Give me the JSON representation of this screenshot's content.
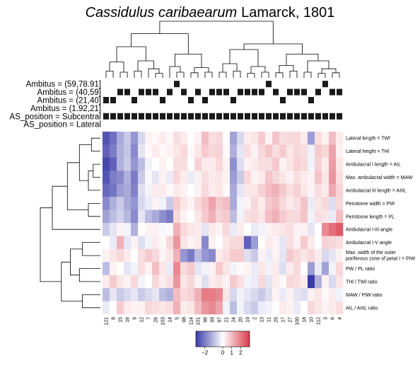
{
  "chart_data": {
    "type": "heatmap",
    "title_species": "Cassidulus caribaearum",
    "title_author": "Lamarck, 1801",
    "colors": {
      "low": "#3a3aaa",
      "mid": "#ffffff",
      "high": "#d83a4a",
      "annotation": "#1a1a1a",
      "line": "#000000"
    },
    "color_key": {
      "min": -3,
      "max": 3,
      "tick_labels": [
        "−2",
        "0",
        "1",
        "2"
      ],
      "tick_values": [
        -2,
        0,
        1,
        2
      ]
    },
    "columns": [
      "121",
      "8",
      "15",
      "16",
      "9",
      "12",
      "7",
      "26",
      "103",
      "14",
      "5",
      "98",
      "114",
      "101",
      "96",
      "99",
      "97",
      "21",
      "24",
      "20",
      "19",
      "2",
      "13",
      "11",
      "25",
      "17",
      "27",
      "100",
      "18",
      "10",
      "112",
      "3",
      "6",
      "4"
    ],
    "rows": [
      "Lateral length = TWl",
      "Lateral height = THl",
      "Ambulacral I length = AIL",
      "Max. ambulacral width = MAW",
      "Ambulacral III length = AIIIL",
      "Peristome width = PW",
      "Peristome length = PL",
      "Ambulacral I-III angle",
      "Ambulacral I-V angle",
      "Max. width of the outer|poriferous zone of petal I = PIW",
      "PW / PL ratio",
      "THl / TWl ratio",
      "MAW / PIW ratio",
      "AIL / AIIIL ratio"
    ],
    "annotation_rows": [
      {
        "label": "Ambitus = (59,78.91]",
        "cells": [
          0,
          0,
          0,
          0,
          0,
          0,
          0,
          0,
          0,
          0,
          1,
          0,
          0,
          0,
          0,
          0,
          0,
          0,
          0,
          0,
          0,
          0,
          0,
          1,
          0,
          0,
          0,
          0,
          0,
          0,
          0,
          1,
          0,
          0
        ]
      },
      {
        "label": "Ambitus = (40,59]",
        "cells": [
          0,
          0,
          1,
          1,
          0,
          1,
          1,
          1,
          0,
          1,
          0,
          1,
          0,
          1,
          0,
          1,
          1,
          1,
          0,
          1,
          1,
          1,
          1,
          0,
          1,
          0,
          1,
          1,
          1,
          0,
          1,
          0,
          1,
          1
        ]
      },
      {
        "label": "Ambitus = (21,40]",
        "cells": [
          1,
          1,
          0,
          0,
          1,
          0,
          0,
          0,
          1,
          0,
          0,
          0,
          1,
          0,
          1,
          0,
          0,
          0,
          1,
          0,
          0,
          0,
          0,
          0,
          0,
          1,
          0,
          0,
          0,
          1,
          0,
          0,
          0,
          0
        ]
      },
      {
        "label": "Ambitus = (1.92,21]",
        "cells": [
          0,
          0,
          0,
          0,
          0,
          0,
          0,
          0,
          0,
          0,
          0,
          0,
          0,
          0,
          0,
          0,
          0,
          0,
          0,
          0,
          0,
          0,
          0,
          0,
          0,
          0,
          0,
          0,
          0,
          0,
          0,
          0,
          0,
          0
        ]
      },
      {
        "label": "AS_position = Subcentral",
        "cells": [
          1,
          1,
          1,
          1,
          1,
          1,
          1,
          1,
          1,
          1,
          1,
          1,
          1,
          1,
          1,
          1,
          1,
          1,
          1,
          1,
          1,
          1,
          1,
          1,
          1,
          1,
          1,
          1,
          1,
          1,
          1,
          1,
          1,
          1
        ]
      },
      {
        "label": "AS_position = Lateral",
        "cells": [
          0,
          0,
          0,
          0,
          0,
          0,
          0,
          0,
          0,
          0,
          0,
          0,
          0,
          0,
          0,
          0,
          0,
          0,
          0,
          0,
          0,
          0,
          0,
          0,
          0,
          0,
          0,
          0,
          0,
          0,
          0,
          0,
          0,
          0
        ]
      }
    ],
    "values": [
      [
        -2.6,
        -2.2,
        -1.3,
        -0.8,
        -1.6,
        -0.6,
        0.2,
        0.1,
        0.3,
        0.1,
        0.5,
        0.3,
        0.0,
        0.2,
        1.0,
        0.5,
        0.6,
        0.0,
        -1.4,
        -0.6,
        0.3,
        0.4,
        0.8,
        0.2,
        0.9,
        0.5,
        0.6,
        0.6,
        0.3,
        -1.5,
        0.5,
        0.2,
        1.0,
        0.3
      ],
      [
        -2.4,
        -2.0,
        -1.2,
        -0.9,
        -1.8,
        -0.4,
        0.1,
        0.3,
        0.1,
        0.2,
        0.4,
        0.6,
        0.1,
        0.4,
        0.8,
        0.6,
        0.7,
        0.1,
        -1.2,
        -0.4,
        0.5,
        0.2,
        0.6,
        0.9,
        0.5,
        0.8,
        0.4,
        0.6,
        0.5,
        -0.2,
        0.8,
        0.6,
        1.4,
        0.2
      ],
      [
        -2.8,
        -2.4,
        -1.2,
        -0.8,
        -1.6,
        -1.0,
        -0.2,
        0.0,
        0.2,
        0.0,
        0.5,
        0.5,
        0.0,
        0.7,
        0.3,
        0.3,
        0.6,
        0.2,
        -1.7,
        -0.5,
        0.2,
        0.3,
        0.5,
        0.5,
        0.8,
        0.2,
        0.4,
        0.7,
        0.6,
        -0.2,
        0.7,
        0.3,
        1.5,
        0.4
      ],
      [
        -2.6,
        -2.0,
        -1.8,
        -1.2,
        -2.0,
        -0.8,
        -0.1,
        -0.4,
        0.2,
        -0.3,
        0.6,
        0.3,
        -0.3,
        0.2,
        0.5,
        0.3,
        0.4,
        0.2,
        -1.5,
        -0.8,
        0.6,
        0.2,
        0.3,
        0.9,
        0.6,
        0.4,
        0.2,
        0.5,
        0.3,
        0.2,
        0.9,
        0.4,
        1.6,
        0.5
      ],
      [
        -2.3,
        -2.1,
        -1.5,
        -1.3,
        -1.9,
        -0.5,
        -0.2,
        0.3,
        0.3,
        0.1,
        0.3,
        0.2,
        0.0,
        0.2,
        0.6,
        0.3,
        0.4,
        0.1,
        -1.3,
        -0.4,
        0.4,
        0.4,
        0.7,
        1.0,
        1.2,
        0.8,
        0.5,
        0.7,
        0.4,
        0.2,
        0.5,
        0.3,
        1.3,
        0.7
      ],
      [
        -1.8,
        -1.2,
        -0.8,
        -1.3,
        -1.6,
        -0.6,
        -0.3,
        0.2,
        -0.2,
        -0.8,
        0.8,
        0.4,
        0.2,
        0.6,
        0.9,
        1.4,
        0.8,
        1.0,
        -1.3,
        -0.2,
        0.2,
        0.6,
        0.3,
        0.8,
        1.0,
        0.6,
        0.3,
        0.5,
        0.9,
        -0.3,
        0.4,
        0.6,
        -0.5,
        0.6
      ],
      [
        -1.4,
        -1.0,
        -0.7,
        -1.1,
        -1.8,
        -0.4,
        -1.0,
        -1.3,
        -1.7,
        -2.0,
        0.6,
        0.2,
        0.0,
        0.4,
        0.8,
        1.2,
        0.7,
        0.8,
        -1.0,
        -0.2,
        0.5,
        0.6,
        0.4,
        1.0,
        1.2,
        0.8,
        0.6,
        0.6,
        0.9,
        -0.2,
        0.5,
        0.4,
        -0.3,
        1.0
      ],
      [
        -0.8,
        -0.4,
        0.2,
        -0.2,
        -1.2,
        0.0,
        0.2,
        0.2,
        -0.1,
        0.1,
        1.2,
        0.6,
        0.4,
        0.3,
        -0.4,
        0.3,
        0.2,
        0.6,
        -0.3,
        0.3,
        0.0,
        -0.3,
        -0.2,
        0.2,
        0.3,
        0.4,
        0.5,
        0.2,
        0.2,
        -0.4,
        0.0,
        1.8,
        2.2,
        2.5
      ],
      [
        0.0,
        -0.3,
        1.2,
        -0.4,
        0.2,
        -0.5,
        -0.2,
        0.3,
        0.1,
        0.6,
        1.6,
        0.4,
        0.2,
        0.3,
        -1.8,
        0.2,
        0.0,
        0.4,
        0.6,
        0.6,
        -2.4,
        -1.5,
        0.0,
        0.3,
        0.2,
        -0.4,
        0.5,
        0.2,
        0.8,
        0.3,
        0.0,
        0.7,
        0.6,
        0.5
      ],
      [
        0.2,
        0.4,
        0.6,
        0.3,
        0.0,
        0.5,
        0.8,
        0.6,
        0.2,
        0.4,
        1.2,
        -1.6,
        -2.0,
        -1.0,
        -1.6,
        -1.8,
        0.3,
        0.5,
        0.8,
        0.8,
        -0.5,
        -0.8,
        0.2,
        -0.3,
        0.2,
        -0.4,
        0.8,
        0.6,
        0.4,
        0.6,
        0.3,
        -0.6,
        -0.4,
        0.2
      ],
      [
        -1.0,
        0.2,
        0.0,
        -0.4,
        -0.2,
        0.5,
        0.2,
        1.0,
        0.4,
        -0.3,
        1.8,
        0.6,
        0.8,
        -0.4,
        -0.2,
        0.2,
        0.8,
        0.4,
        -0.2,
        0.1,
        0.2,
        -0.3,
        0.4,
        -0.2,
        0.3,
        -0.5,
        0.3,
        0.6,
        0.0,
        -1.5,
        -0.3,
        -1.4,
        -0.2,
        0.6
      ],
      [
        0.3,
        0.8,
        0.4,
        0.2,
        0.6,
        -0.2,
        0.0,
        0.6,
        0.3,
        0.5,
        1.6,
        0.4,
        0.6,
        0.2,
        -0.5,
        0.3,
        0.4,
        0.2,
        0.8,
        0.5,
        -0.2,
        -0.3,
        0.6,
        -0.4,
        0.3,
        0.1,
        0.6,
        0.5,
        0.3,
        -3.0,
        -1.2,
        0.2,
        -0.6,
        0.4
      ],
      [
        -1.0,
        -0.4,
        -0.8,
        -0.6,
        -0.4,
        -0.8,
        -0.6,
        -0.4,
        -1.0,
        -1.2,
        1.0,
        0.6,
        0.7,
        1.2,
        2.0,
        2.0,
        1.8,
        0.4,
        -0.6,
        -0.2,
        -0.4,
        -0.6,
        -0.8,
        -0.5,
        0.2,
        -0.3,
        0.2,
        -0.4,
        -0.5,
        0.2,
        0.4,
        0.1,
        0.3,
        -0.2
      ],
      [
        -0.3,
        0.0,
        0.8,
        0.3,
        0.2,
        0.2,
        0.6,
        0.5,
        0.4,
        0.5,
        1.2,
        0.3,
        0.4,
        1.0,
        1.6,
        1.8,
        1.4,
        -0.2,
        -1.0,
        -0.2,
        -0.6,
        -0.8,
        -0.3,
        -0.2,
        0.0,
        0.3,
        0.2,
        -0.3,
        0.0,
        0.6,
        0.4,
        0.2,
        0.3,
        0.5
      ]
    ]
  }
}
